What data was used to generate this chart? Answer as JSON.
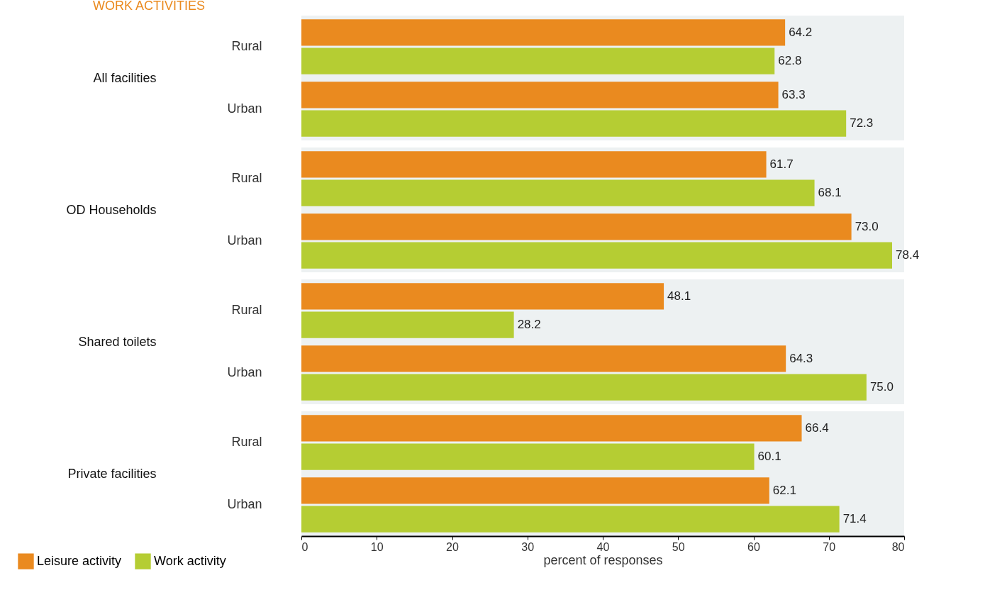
{
  "chart_data": [
    {
      "type": "bar",
      "orientation": "horizontal",
      "title": "WORK ACTIVITIES",
      "ylabel": "All facilities",
      "categories": [
        "Rural",
        "Urban"
      ],
      "series": [
        {
          "name": "Leisure activity",
          "color": "#ea8a1f",
          "values": [
            64.2,
            63.3
          ],
          "value_labels": [
            "64.2",
            "63.3"
          ]
        },
        {
          "name": "Work activity",
          "color": "#b5cd33",
          "values": [
            62.8,
            72.3
          ],
          "value_labels": [
            "62.8",
            "72.3"
          ]
        }
      ],
      "xlim": [
        0,
        80
      ],
      "xticks": [
        0,
        10,
        20,
        30,
        40,
        50,
        60,
        70,
        80
      ],
      "tick_labels": "y",
      "legend": "bottom left"
    },
    {
      "type": "bar",
      "orientation": "horizontal",
      "ylabel": "OD Households",
      "categories": [
        "Rural",
        "Urban"
      ],
      "series": [
        {
          "name": "Leisure activity",
          "color": "#ea8a1f",
          "values": [
            61.7,
            73.0
          ],
          "value_labels": [
            "61.7",
            "73.0"
          ]
        },
        {
          "name": "Work activity",
          "color": "#b5cd33",
          "values": [
            68.1,
            78.4
          ],
          "value_labels": [
            "68.1",
            "78.4"
          ]
        }
      ],
      "xlim": [
        0,
        80
      ],
      "xticks": [
        0,
        10,
        20,
        30,
        40,
        50,
        60,
        70,
        80
      ],
      "tick_labels": "y"
    },
    {
      "type": "bar",
      "orientation": "horizontal",
      "ylabel": "Shared toilets",
      "categories": [
        "Rural",
        "Urban"
      ],
      "series": [
        {
          "name": "Leisure activity",
          "color": "#ea8a1f",
          "values": [
            48.1,
            64.3
          ],
          "value_labels": [
            "48.1",
            "64.3"
          ]
        },
        {
          "name": "Work activity",
          "color": "#b5cd33",
          "values": [
            28.2,
            75.0
          ],
          "value_labels": [
            "28.2",
            "75.0"
          ]
        }
      ],
      "xlim": [
        0,
        80
      ],
      "xticks": [
        0,
        10,
        20,
        30,
        40,
        50,
        60,
        70,
        80
      ],
      "tick_labels": "y"
    },
    {
      "type": "bar",
      "orientation": "horizontal",
      "ylabel": "Private facilities",
      "xlabel": "percent of responses",
      "categories": [
        "Rural",
        "Urban"
      ],
      "series": [
        {
          "name": "Leisure activity",
          "color": "#ea8a1f",
          "values": [
            66.4,
            62.1
          ],
          "value_labels": [
            "66.4",
            "62.1"
          ]
        },
        {
          "name": "Work activity",
          "color": "#b5cd33",
          "values": [
            60.1,
            71.4
          ],
          "value_labels": [
            "60.1",
            "71.4"
          ]
        }
      ],
      "xlim": [
        0,
        80
      ],
      "xticks": [
        0,
        10,
        20,
        30,
        40,
        50,
        60,
        70,
        80
      ]
    }
  ]
}
